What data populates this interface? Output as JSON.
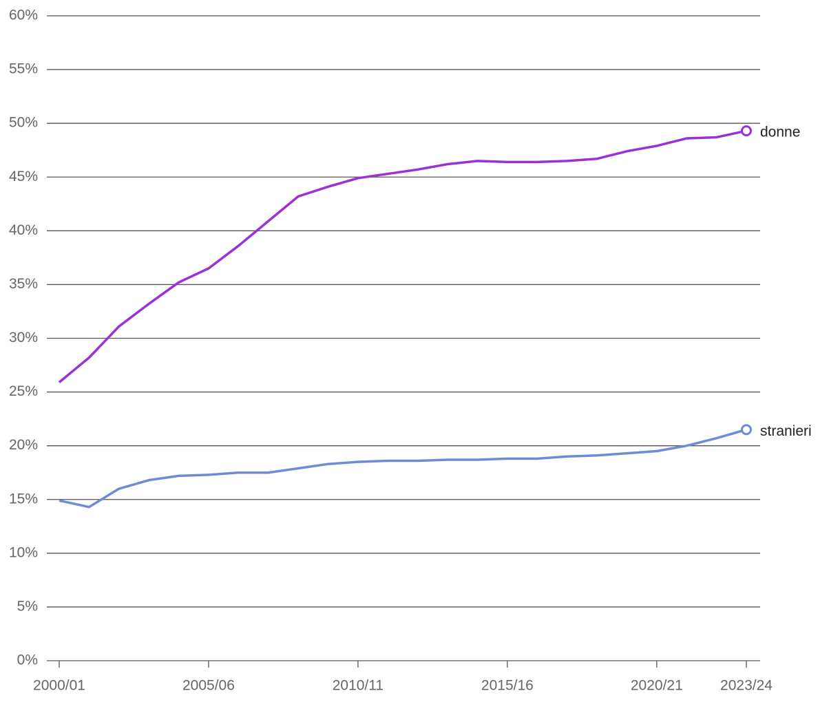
{
  "chart_data": {
    "type": "line",
    "categories": [
      "2000/01",
      null,
      null,
      null,
      null,
      "2005/06",
      null,
      null,
      null,
      null,
      "2010/11",
      null,
      null,
      null,
      null,
      "2015/16",
      null,
      null,
      null,
      null,
      "2020/21",
      null,
      null,
      "2023/24"
    ],
    "series": [
      {
        "name": "donne",
        "color": "#9b30d9",
        "values": [
          25.9,
          28.2,
          31.1,
          33.2,
          35.2,
          36.5,
          38.6,
          40.9,
          43.2,
          44.1,
          44.9,
          45.3,
          45.7,
          46.2,
          46.5,
          46.4,
          46.4,
          46.5,
          46.7,
          47.4,
          47.9,
          48.6,
          48.7,
          49.3
        ]
      },
      {
        "name": "stranieri",
        "color": "#6f8bd8",
        "values": [
          14.9,
          14.3,
          16.0,
          16.8,
          17.2,
          17.3,
          17.5,
          17.5,
          17.9,
          18.3,
          18.5,
          18.6,
          18.6,
          18.7,
          18.7,
          18.8,
          18.8,
          19.0,
          19.1,
          19.3,
          19.5,
          20.0,
          20.7,
          21.5
        ]
      }
    ],
    "ylim": [
      0,
      60
    ],
    "yticks": [
      {
        "value": 0,
        "label": "0%"
      },
      {
        "value": 5,
        "label": "5%"
      },
      {
        "value": 10,
        "label": "10%"
      },
      {
        "value": 15,
        "label": "15%"
      },
      {
        "value": 20,
        "label": "20%"
      },
      {
        "value": 25,
        "label": "25%"
      },
      {
        "value": 30,
        "label": "30%"
      },
      {
        "value": 35,
        "label": "35%"
      },
      {
        "value": 40,
        "label": "40%"
      },
      {
        "value": 45,
        "label": "45%"
      },
      {
        "value": 50,
        "label": "50%"
      },
      {
        "value": 55,
        "label": "55%"
      },
      {
        "value": 60,
        "label": "60%"
      }
    ],
    "grid": true
  }
}
